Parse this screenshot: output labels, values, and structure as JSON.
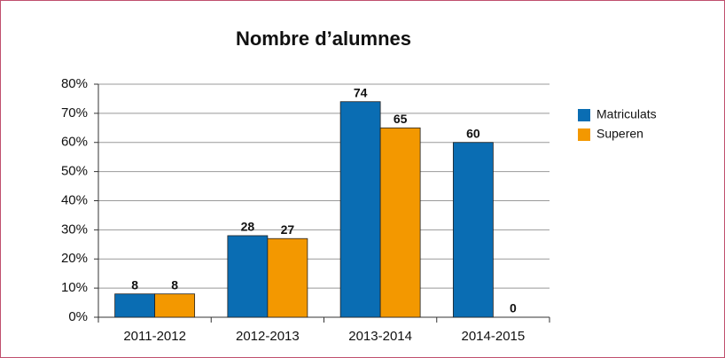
{
  "chart_data": {
    "type": "bar",
    "title": "Nombre d’alumnes",
    "categories": [
      "2011-2012",
      "2012-2013",
      "2013-2014",
      "2014-2015"
    ],
    "series": [
      {
        "name": "Matriculats",
        "color": "#0a6db3",
        "values": [
          8,
          28,
          74,
          60
        ]
      },
      {
        "name": "Superen",
        "color": "#f39800",
        "values": [
          8,
          27,
          65,
          0
        ]
      }
    ],
    "ylim": [
      0,
      80
    ],
    "yticks": [
      {
        "value": 0,
        "label": "0%"
      },
      {
        "value": 10,
        "label": "10%"
      },
      {
        "value": 20,
        "label": "20%"
      },
      {
        "value": 30,
        "label": "30%"
      },
      {
        "value": 40,
        "label": "40%"
      },
      {
        "value": 50,
        "label": "50%"
      },
      {
        "value": 60,
        "label": "60%"
      },
      {
        "value": 70,
        "label": "70%"
      },
      {
        "value": 80,
        "label": "80%"
      }
    ],
    "grid": true,
    "legend": "right"
  }
}
